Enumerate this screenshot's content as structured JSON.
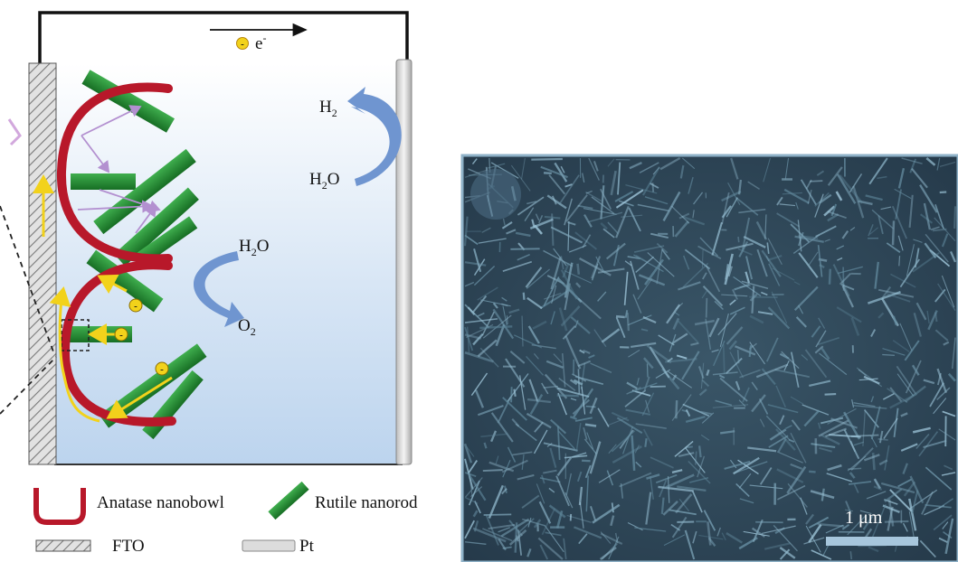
{
  "diagram": {
    "electron_label": "e",
    "electron_sup": "-",
    "electron_charge": "-",
    "cathode_reaction": {
      "reactant": "H",
      "reactant_sub": "2",
      "reactant_end": "O",
      "product": "H",
      "product_sub": "2"
    },
    "anode_reaction": {
      "reactant": "H",
      "reactant_sub": "2",
      "reactant_end": "O",
      "product": "O",
      "product_sub": "2"
    },
    "hole_charge": "-"
  },
  "legend": {
    "nanobowl": "Anatase nanobowl",
    "nanorod": "Rutile nanorod",
    "fto": "FTO",
    "pt": "Pt"
  },
  "sem": {
    "scale_label": "1 μm"
  },
  "colors": {
    "nanobowl": "#b8182a",
    "nanorod": "#1f8a2e",
    "fto": "#c9c9c9",
    "electrolyte": "#c6dcf2",
    "reaction_arrow": "#6f95d0",
    "electron": "#f2d21b",
    "sem_bg": "#2e4658"
  }
}
